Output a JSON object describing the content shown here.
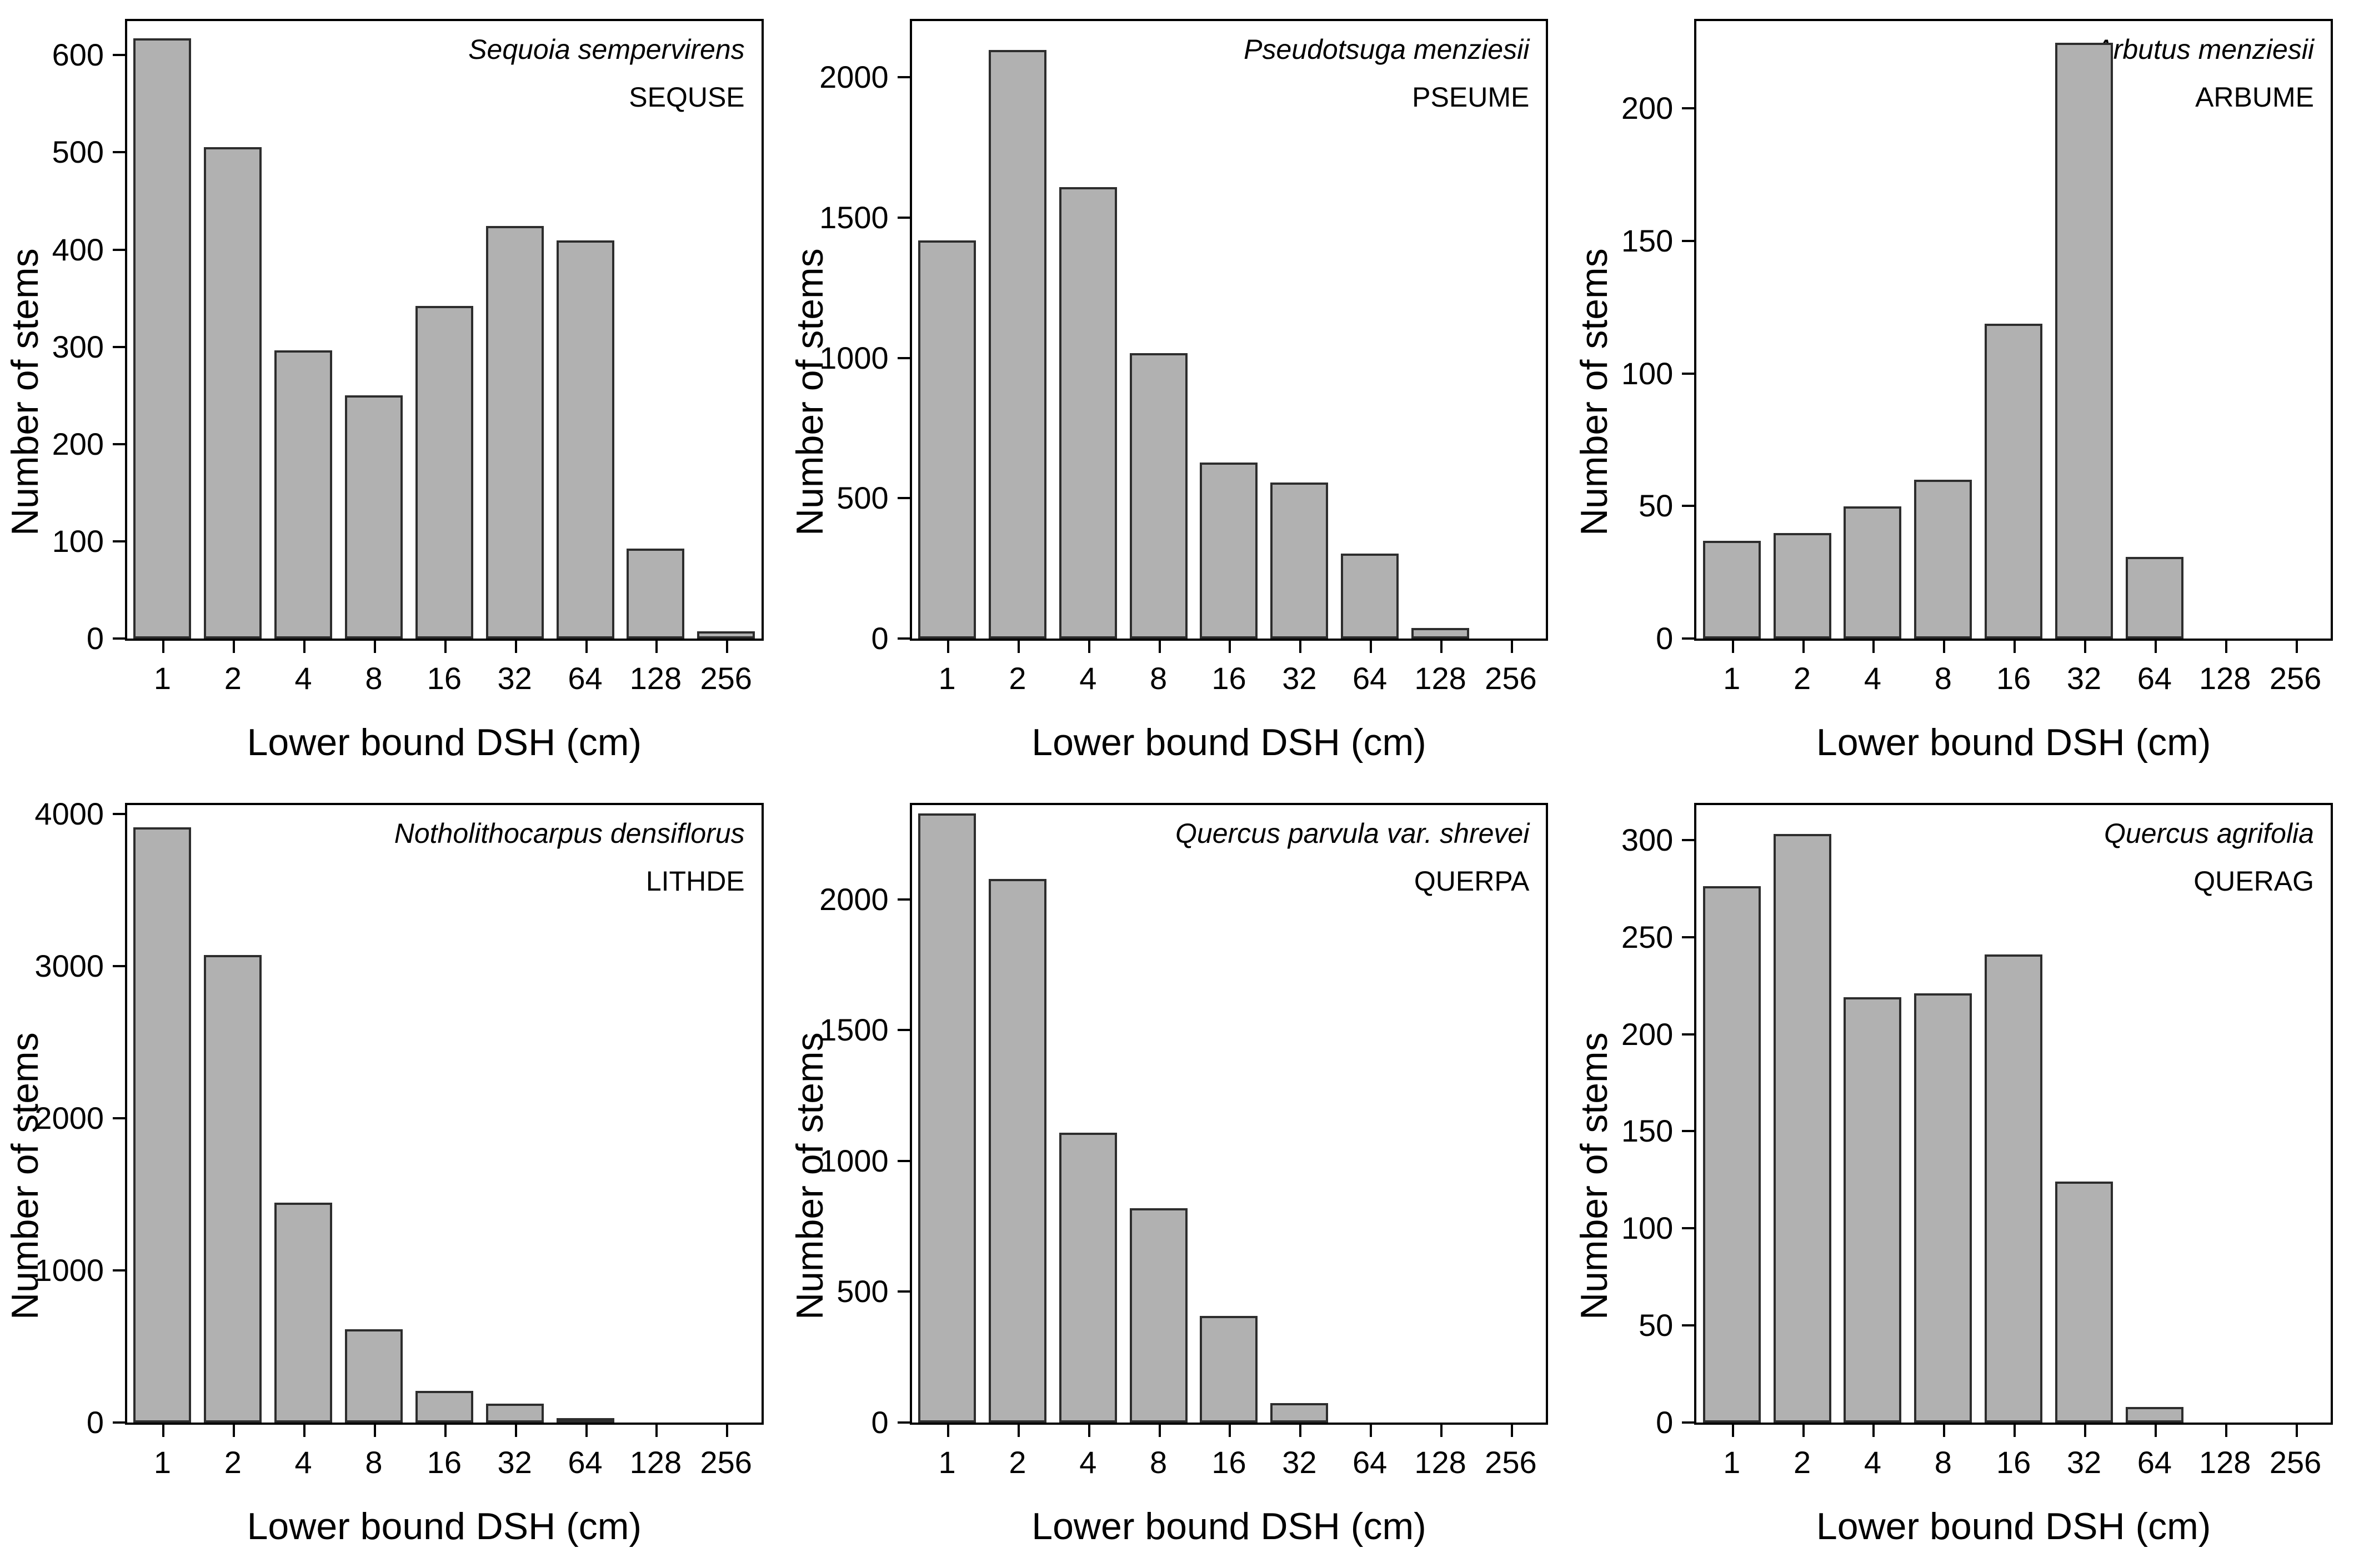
{
  "figure": {
    "xlabel": "Lower bound DSH (cm)",
    "ylabel": "Number of stems"
  },
  "style": {
    "bar_fill": "#b1b1b1",
    "bar_border": "#2d2d2d",
    "axis_color": "#000000",
    "text_color": "#000000",
    "background": "#ffffff"
  },
  "chart_data": [
    {
      "type": "bar",
      "species": "Sequoia sempervirens",
      "code": "SEQUSE",
      "categories": [
        "1",
        "2",
        "4",
        "8",
        "16",
        "32",
        "64",
        "128",
        "256"
      ],
      "values": [
        615,
        503,
        294,
        248,
        340,
        422,
        407,
        90,
        5
      ],
      "yticks": [
        0,
        100,
        200,
        300,
        400,
        500,
        600
      ],
      "ylim": [
        0,
        635
      ],
      "xlabel": "Lower bound DSH (cm)",
      "ylabel": "Number of stems",
      "grid": false,
      "legend": "none"
    },
    {
      "type": "bar",
      "species": "Pseudotsuga menziesii",
      "code": "PSEUME",
      "categories": [
        "1",
        "2",
        "4",
        "8",
        "16",
        "32",
        "64",
        "128",
        "256"
      ],
      "values": [
        1410,
        2090,
        1600,
        1010,
        620,
        548,
        295,
        30,
        0
      ],
      "yticks": [
        0,
        500,
        1000,
        1500,
        2000
      ],
      "ylim": [
        0,
        2200
      ],
      "xlabel": "Lower bound DSH (cm)",
      "ylabel": "Number of stems",
      "grid": false,
      "legend": "none"
    },
    {
      "type": "bar",
      "species": "Arbutus menziesii",
      "code": "ARBUME",
      "categories": [
        "1",
        "2",
        "4",
        "8",
        "16",
        "32",
        "64",
        "128",
        "256"
      ],
      "values": [
        36,
        39,
        49,
        59,
        118,
        224,
        30,
        0,
        0
      ],
      "yticks": [
        0,
        50,
        100,
        150,
        200
      ],
      "ylim": [
        0,
        233
      ],
      "xlabel": "Lower bound DSH (cm)",
      "ylabel": "Number of stems",
      "grid": false,
      "legend": "none"
    },
    {
      "type": "bar",
      "species": "Notholithocarpus densiflorus",
      "code": "LITHDE",
      "categories": [
        "1",
        "2",
        "4",
        "8",
        "16",
        "32",
        "64",
        "128",
        "256"
      ],
      "values": [
        3900,
        3060,
        1430,
        600,
        195,
        110,
        15,
        0,
        0
      ],
      "yticks": [
        0,
        1000,
        2000,
        3000,
        4000
      ],
      "ylim": [
        0,
        4060
      ],
      "xlabel": "Lower bound DSH (cm)",
      "ylabel": "Number of stems",
      "grid": false,
      "legend": "none"
    },
    {
      "type": "bar",
      "species": "Quercus parvula var. shrevei",
      "code": "QUERPA",
      "categories": [
        "1",
        "2",
        "4",
        "8",
        "16",
        "32",
        "64",
        "128",
        "256"
      ],
      "values": [
        2320,
        2070,
        1100,
        810,
        400,
        65,
        0,
        0,
        0
      ],
      "yticks": [
        0,
        500,
        1000,
        1500,
        2000
      ],
      "ylim": [
        0,
        2360
      ],
      "xlabel": "Lower bound DSH (cm)",
      "ylabel": "Number of stems",
      "grid": false,
      "legend": "none"
    },
    {
      "type": "bar",
      "species": "Quercus agrifolia",
      "code": "QUERAG",
      "categories": [
        "1",
        "2",
        "4",
        "8",
        "16",
        "32",
        "64",
        "128",
        "256"
      ],
      "values": [
        275,
        302,
        218,
        220,
        240,
        123,
        7,
        0,
        0
      ],
      "yticks": [
        0,
        50,
        100,
        150,
        200,
        250,
        300
      ],
      "ylim": [
        0,
        318
      ],
      "xlabel": "Lower bound DSH (cm)",
      "ylabel": "Number of stems",
      "grid": false,
      "legend": "none"
    }
  ]
}
